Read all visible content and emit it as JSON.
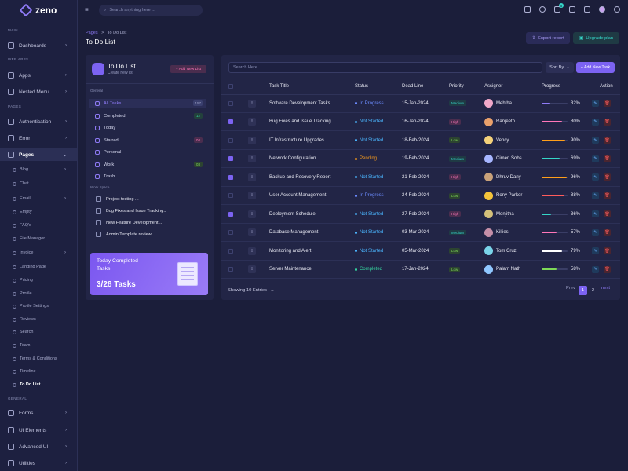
{
  "app": {
    "name": "zeno"
  },
  "header": {
    "search_placeholder": "Search anything here ...",
    "cart_badge": "5"
  },
  "sidebar": {
    "sections": {
      "main": "MAIN",
      "web_apps": "WEB APPS",
      "pages": "PAGES",
      "general": "GENERAL"
    },
    "items": {
      "dashboards": "Dashboards",
      "apps": "Apps",
      "nested": "Nested Menu",
      "auth": "Authentication",
      "error": "Error",
      "pages": "Pages",
      "forms": "Forms",
      "ui": "UI Elements",
      "adv": "Advanced UI",
      "util": "Utilities"
    },
    "subs": [
      "Blog",
      "Chat",
      "Email",
      "Empty",
      "FAQ's",
      "File Manager",
      "Invoice",
      "Landing Page",
      "Pricing",
      "Profile",
      "Profile Settings",
      "Reviews",
      "Search",
      "Team",
      "Terms & Conditions",
      "Timeline",
      "To Do List"
    ]
  },
  "breadcrumb": {
    "parent": "Pages",
    "sep": ">",
    "current": "To Do List"
  },
  "page_title": "To Do List",
  "actions": {
    "export": "Export report",
    "upgrade": "Upgrade plan"
  },
  "left_panel": {
    "title": "To Do List",
    "subtitle": "Create new list",
    "add_button": "+ Add New List",
    "general_label": "General",
    "items": [
      {
        "label": "All Tasks",
        "badge": "157",
        "badge_color": "#3a3f6e",
        "badge_text": "#9da1c6"
      },
      {
        "label": "Completed",
        "badge": "12",
        "badge_color": "#23413c",
        "badge_text": "#35d6a0"
      },
      {
        "label": "Today",
        "badge": "",
        "badge_color": "",
        "badge_text": ""
      },
      {
        "label": "Starred",
        "badge": "04",
        "badge_color": "#4a2d4e",
        "badge_text": "#ff76b9"
      },
      {
        "label": "Personal",
        "badge": "",
        "badge_color": "",
        "badge_text": ""
      },
      {
        "label": "Work",
        "badge": "03",
        "badge_color": "#2c4430",
        "badge_text": "#7ed957"
      },
      {
        "label": "Trash",
        "badge": "",
        "badge_color": "",
        "badge_text": ""
      }
    ],
    "workspace_label": "Work Space",
    "workspace": [
      "Project testing ...",
      "Bug Fixes and Issue Tracking..",
      "New Feature Development...",
      "Admin Template review..."
    ],
    "promo": {
      "line1": "Today Completed",
      "line2": "Tasks",
      "count": "3/28 Tasks"
    }
  },
  "table": {
    "search_placeholder": "Search Here",
    "sort_label": "Sort By",
    "add_task": "+ Add New Task",
    "columns": [
      "Task Title",
      "Status",
      "Dead Line",
      "Priority",
      "Assigner",
      "Progress",
      "Action"
    ],
    "rows": [
      {
        "checked": false,
        "title": "Software Development Tasks",
        "status": "In Progress",
        "deadline": "15-Jan-2024",
        "priority": "Medium",
        "assigner": "Mehtha",
        "progress": 32
      },
      {
        "checked": true,
        "title": "Bug Fixes and Issue Tracking",
        "status": "Not Started",
        "deadline": "16-Jan-2024",
        "priority": "High",
        "assigner": "Ranjeeth",
        "progress": 80
      },
      {
        "checked": false,
        "title": "IT Infrastructure Upgrades",
        "status": "Not Started",
        "deadline": "18-Feb-2024",
        "priority": "Low",
        "assigner": "Vency",
        "progress": 90
      },
      {
        "checked": true,
        "title": "Network Configuration",
        "status": "Pending",
        "deadline": "19-Feb-2024",
        "priority": "Medium",
        "assigner": "Cimen Sobs",
        "progress": 69
      },
      {
        "checked": true,
        "title": "Backup and Recovery Report",
        "status": "Not Started",
        "deadline": "21-Feb-2024",
        "priority": "High",
        "assigner": "Dhruv Dany",
        "progress": 96
      },
      {
        "checked": false,
        "title": "User Account Management",
        "status": "In Progress",
        "deadline": "24-Feb-2024",
        "priority": "Low",
        "assigner": "Rony Parker",
        "progress": 88
      },
      {
        "checked": true,
        "title": "Deployment Schedule",
        "status": "Not Started",
        "deadline": "27-Feb-2024",
        "priority": "High",
        "assigner": "Monjitha",
        "progress": 36
      },
      {
        "checked": false,
        "title": "Database Management",
        "status": "Not Started",
        "deadline": "03-Mar-2024",
        "priority": "Medium",
        "assigner": "Killies",
        "progress": 57
      },
      {
        "checked": false,
        "title": "Monitoring and Alert",
        "status": "Not Started",
        "deadline": "05-Mar-2024",
        "priority": "Low",
        "assigner": "Tom Cruz",
        "progress": 79
      },
      {
        "checked": false,
        "title": "Server Maintenance",
        "status": "Completed",
        "deadline": "17-Jan-2024",
        "priority": "Low",
        "assigner": "Palam Nath",
        "progress": 58
      }
    ],
    "footer": {
      "showing": "Showing 10 Entries",
      "prev": "Prev",
      "page1": "1",
      "page2": "2",
      "next": "next"
    }
  },
  "colors": {
    "accent": "#7c63f2",
    "status": {
      "In Progress": "#6c8cff",
      "Not Started": "#4bb6ff",
      "Pending": "#ff9f1a",
      "Completed": "#35d6a0"
    },
    "priority": {
      "Medium": [
        "#1f3a44",
        "#35d6c8"
      ],
      "High": [
        "#4a2d4e",
        "#ff76b9"
      ],
      "Low": [
        "#2c4430",
        "#7ed957"
      ]
    },
    "progress": [
      "#8f7bf7",
      "#ff76b9",
      "#ff9f1a",
      "#35d6c8",
      "#ff9f1a",
      "#ff5c5c",
      "#35d6c8",
      "#ff76b9",
      "#ffffff",
      "#7ed957"
    ],
    "avatars": [
      "#f1a8c9",
      "#e9a06b",
      "#f4d17a",
      "#a7b6ff",
      "#c9a27a",
      "#f4c33a",
      "#d4c07a",
      "#c58fa8",
      "#7ad4e9",
      "#8fc7ff"
    ]
  }
}
